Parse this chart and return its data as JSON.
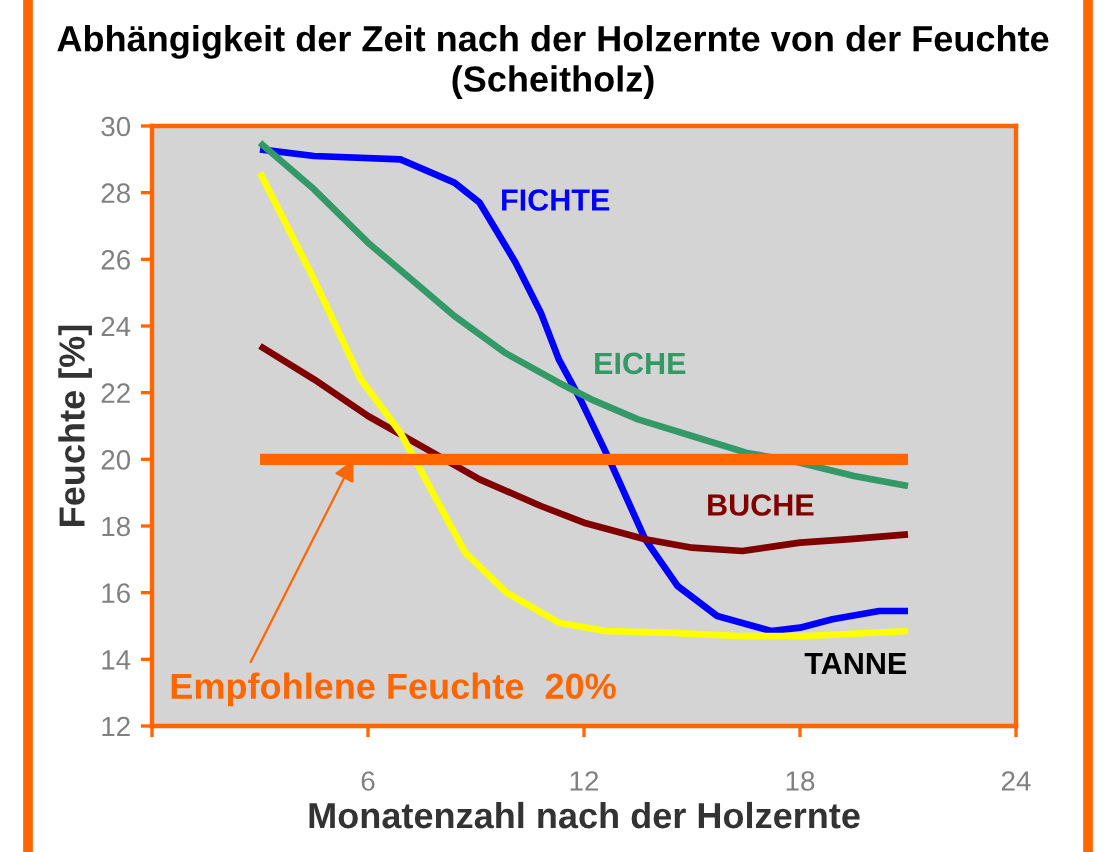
{
  "chart_data": {
    "type": "line",
    "title": "Abhängigkeit der Zeit nach der Holzernte von der Feuchte\n(Scheitholz)",
    "xlabel": "Monatenzahl nach der Holzernte",
    "ylabel": "Feuchte [%]",
    "xlim": [
      0,
      24
    ],
    "xticks": [
      {
        "value": 0,
        "label": null
      },
      6,
      12,
      18,
      24
    ],
    "ylim": [
      12,
      30
    ],
    "yticks": [
      12,
      14,
      16,
      18,
      20,
      22,
      24,
      26,
      28,
      30
    ],
    "marker": "none",
    "line_style": "solid",
    "grid": false,
    "series": [
      {
        "name": "FICHTE",
        "color": "#0000ff",
        "x": [
          3,
          4.5,
          6.9,
          8.4,
          9.1,
          10.1,
          10.8,
          11.3,
          11.9,
          12.7,
          13.7,
          14.6,
          15.7,
          17.2,
          18,
          18.9,
          20.2,
          21
        ],
        "values": [
          29.3,
          29.1,
          29.0,
          28.3,
          27.7,
          25.9,
          24.4,
          23.0,
          21.8,
          20.0,
          17.6,
          16.2,
          15.3,
          14.85,
          14.95,
          15.2,
          15.45,
          15.45
        ]
      },
      {
        "name": "EICHE",
        "color": "#339966",
        "x": [
          3,
          4.5,
          6,
          7.2,
          8.4,
          9.8,
          11.3,
          12.2,
          13.5,
          15,
          16.5,
          18,
          19.5,
          21
        ],
        "values": [
          29.5,
          28.1,
          26.5,
          25.4,
          24.3,
          23.2,
          22.3,
          21.8,
          21.2,
          20.7,
          20.2,
          19.9,
          19.5,
          19.2
        ]
      },
      {
        "name": "BUCHE",
        "color": "#800000",
        "x": [
          3,
          4.5,
          6,
          7.8,
          9.1,
          10.8,
          12,
          13.7,
          15,
          16.4,
          18,
          19.3,
          21
        ],
        "values": [
          23.4,
          22.4,
          21.3,
          20.2,
          19.4,
          18.6,
          18.1,
          17.6,
          17.35,
          17.25,
          17.5,
          17.6,
          17.75
        ]
      },
      {
        "name": "TANNE",
        "color": "#ffff00",
        "x": [
          3,
          4.5,
          5.8,
          6.9,
          7.8,
          8.7,
          9.85,
          11.3,
          12.6,
          14.3,
          16.3,
          18.2,
          21
        ],
        "values": [
          28.6,
          25.4,
          22.4,
          20.8,
          19.0,
          17.2,
          16.0,
          15.1,
          14.85,
          14.8,
          14.7,
          14.7,
          14.85
        ]
      },
      {
        "color": "#ff6600",
        "x": [
          3,
          21
        ],
        "values": [
          20,
          20
        ]
      }
    ],
    "annotations": [
      {
        "text": "Empfohlene Feuchte  20%",
        "x": 5.6,
        "y": 20
      }
    ]
  }
}
